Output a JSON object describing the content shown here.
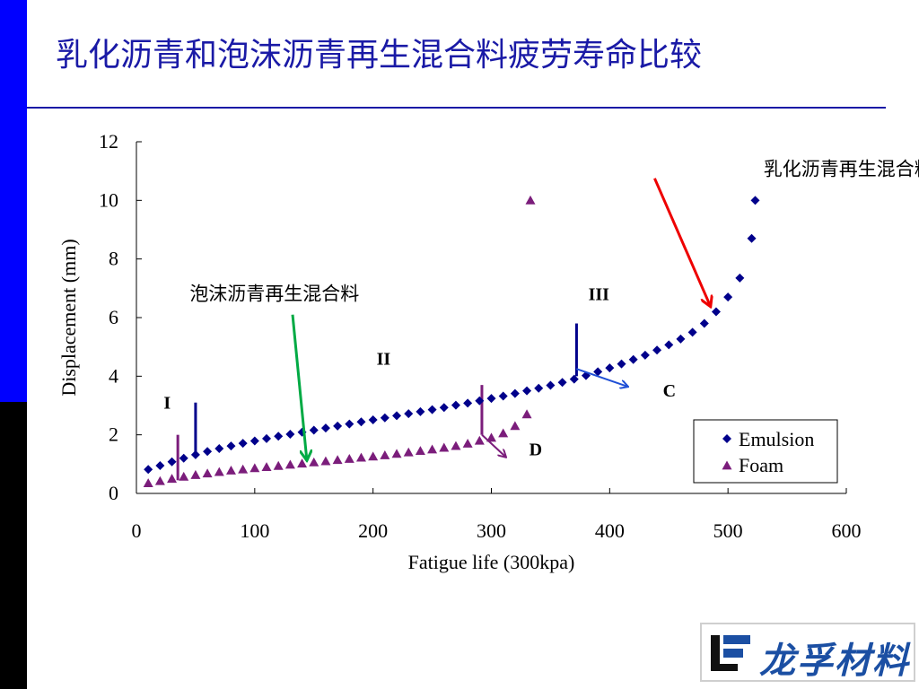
{
  "slide": {
    "title": "乳化沥青和泡沫沥青再生混合料疲劳寿命比较",
    "logo_text": "龙孚材料",
    "colors": {
      "title": "#1a1aa6",
      "side_blue": "#0000ff",
      "side_black": "#000000"
    }
  },
  "chart_data": {
    "type": "scatter",
    "xlabel": "Fatigue life (300kpa)",
    "ylabel": "Displacement (mm)",
    "xlim": [
      0,
      600
    ],
    "ylim": [
      0,
      12
    ],
    "xticks": [
      0,
      100,
      200,
      300,
      400,
      500,
      600
    ],
    "yticks": [
      0,
      2,
      4,
      6,
      8,
      10,
      12
    ],
    "grid": false,
    "legend_position": "bottom-right",
    "series": [
      {
        "name": "Emulsion",
        "marker": "diamond",
        "color": "#00008b",
        "x": [
          10,
          20,
          30,
          40,
          50,
          60,
          70,
          80,
          90,
          100,
          110,
          120,
          130,
          140,
          150,
          160,
          170,
          180,
          190,
          200,
          210,
          220,
          230,
          240,
          250,
          260,
          270,
          280,
          290,
          300,
          310,
          320,
          330,
          340,
          350,
          360,
          370,
          380,
          390,
          400,
          410,
          420,
          430,
          440,
          450,
          460,
          470,
          480,
          490,
          500,
          510,
          520,
          523
        ],
        "y": [
          0.82,
          0.95,
          1.08,
          1.2,
          1.32,
          1.43,
          1.53,
          1.62,
          1.71,
          1.79,
          1.87,
          1.95,
          2.02,
          2.09,
          2.16,
          2.23,
          2.3,
          2.37,
          2.44,
          2.51,
          2.58,
          2.65,
          2.72,
          2.79,
          2.86,
          2.93,
          3.01,
          3.08,
          3.16,
          3.24,
          3.32,
          3.41,
          3.5,
          3.59,
          3.69,
          3.79,
          3.9,
          4.02,
          4.15,
          4.28,
          4.42,
          4.57,
          4.72,
          4.89,
          5.07,
          5.27,
          5.5,
          5.8,
          6.2,
          6.7,
          7.35,
          8.7,
          10.0
        ]
      },
      {
        "name": "Foam",
        "marker": "triangle",
        "color": "#7b1d7b",
        "x": [
          10,
          20,
          30,
          40,
          50,
          60,
          70,
          80,
          90,
          100,
          110,
          120,
          130,
          140,
          150,
          160,
          170,
          180,
          190,
          200,
          210,
          220,
          230,
          240,
          250,
          260,
          270,
          280,
          290,
          300,
          310,
          320,
          330,
          333
        ],
        "y": [
          0.35,
          0.42,
          0.5,
          0.57,
          0.63,
          0.68,
          0.73,
          0.78,
          0.82,
          0.86,
          0.9,
          0.94,
          0.98,
          1.02,
          1.06,
          1.1,
          1.14,
          1.18,
          1.22,
          1.26,
          1.3,
          1.35,
          1.4,
          1.45,
          1.5,
          1.56,
          1.62,
          1.7,
          1.8,
          1.9,
          2.05,
          2.3,
          2.7,
          10.0
        ]
      }
    ],
    "annotations": [
      {
        "text": "I",
        "x": 23,
        "y": 2.9
      },
      {
        "text": "II",
        "x": 203,
        "y": 4.4
      },
      {
        "text": "III",
        "x": 382,
        "y": 6.6
      },
      {
        "text": "C",
        "x": 445,
        "y": 3.3
      },
      {
        "text": "D",
        "x": 332,
        "y": 1.3
      },
      {
        "text": "乳化沥青再生混合料",
        "x": 530,
        "y": 10.85
      },
      {
        "text": "泡沫沥青再生混合料",
        "x": 45,
        "y": 6.6
      }
    ],
    "phase_markers": [
      {
        "x": 35,
        "y0": 0.45,
        "y1": 2.0,
        "color": "#7b1d7b"
      },
      {
        "x": 50,
        "y0": 1.4,
        "y1": 3.1,
        "color": "#00008b"
      },
      {
        "x": 292,
        "y0": 2.0,
        "y1": 3.7,
        "color": "#7b1d7b"
      },
      {
        "x": 372,
        "y0": 4.0,
        "y1": 5.8,
        "color": "#00008b"
      }
    ],
    "arrows": [
      {
        "label": "C",
        "color": "#1f4fd6",
        "from": [
          372,
          4.25
        ],
        "to": [
          415,
          3.65
        ]
      },
      {
        "label": "D",
        "color": "#7b1d7b",
        "from": [
          292,
          2.0
        ],
        "to": [
          312,
          1.25
        ]
      },
      {
        "label": "emulsion-callout",
        "color": "#ee0000",
        "from": [
          438,
          10.75
        ],
        "to": [
          485,
          6.4
        ]
      },
      {
        "label": "foam-callout",
        "color": "#00aa44",
        "from": [
          132,
          6.1
        ],
        "to": [
          144,
          1.15
        ]
      }
    ]
  }
}
